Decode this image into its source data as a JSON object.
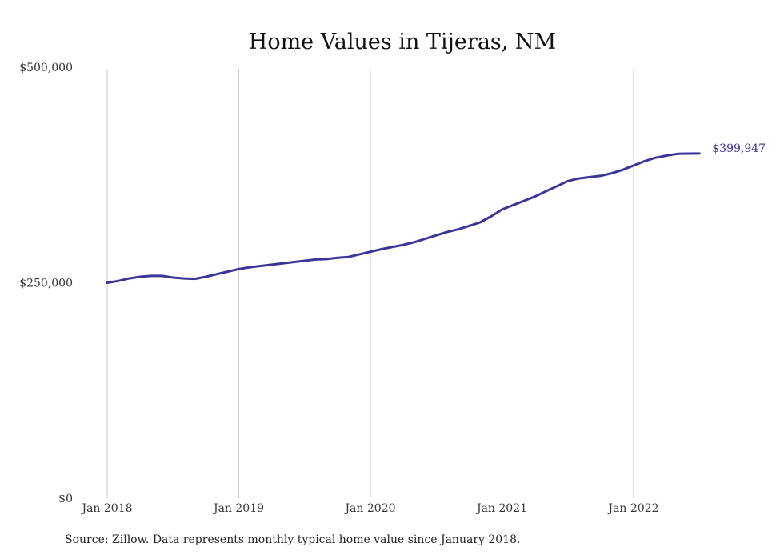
{
  "chart_data": {
    "type": "line",
    "title": "Home Values in Tijeras, NM",
    "xlabel": "",
    "ylabel": "",
    "ylim": [
      0,
      500000
    ],
    "y_ticks": [
      {
        "value": 0,
        "label": "$0"
      },
      {
        "value": 250000,
        "label": "$250,000"
      },
      {
        "value": 500000,
        "label": "$500,000"
      }
    ],
    "x_ticks": [
      {
        "value": "2018-01",
        "label": "Jan 2018"
      },
      {
        "value": "2019-01",
        "label": "Jan 2019"
      },
      {
        "value": "2020-01",
        "label": "Jan 2020"
      },
      {
        "value": "2021-01",
        "label": "Jan 2021"
      },
      {
        "value": "2022-01",
        "label": "Jan 2022"
      }
    ],
    "grid": "vertical",
    "line_color": "#3b3598",
    "end_label": "$399,947",
    "series": [
      {
        "x": [
          "2018-01",
          "2018-02",
          "2018-03",
          "2018-04",
          "2018-05",
          "2018-06",
          "2018-07",
          "2018-08",
          "2018-09",
          "2018-10",
          "2018-11",
          "2018-12",
          "2019-01",
          "2019-02",
          "2019-03",
          "2019-04",
          "2019-05",
          "2019-06",
          "2019-07",
          "2019-08",
          "2019-09",
          "2019-10",
          "2019-11",
          "2019-12",
          "2020-01",
          "2020-02",
          "2020-03",
          "2020-04",
          "2020-05",
          "2020-06",
          "2020-07",
          "2020-08",
          "2020-09",
          "2020-10",
          "2020-11",
          "2020-12",
          "2021-01",
          "2021-02",
          "2021-03",
          "2021-04",
          "2021-05",
          "2021-06",
          "2021-07",
          "2021-08",
          "2021-09",
          "2021-10",
          "2021-11",
          "2021-12",
          "2022-01",
          "2022-02",
          "2022-03",
          "2022-04",
          "2022-05",
          "2022-06",
          "2022-07"
        ],
        "values": [
          250000,
          252000,
          255000,
          257000,
          258000,
          258000,
          256000,
          255000,
          254500,
          257000,
          260000,
          263000,
          266000,
          268000,
          269500,
          271000,
          272500,
          274000,
          275500,
          277000,
          277500,
          279000,
          280000,
          283000,
          286000,
          289000,
          291500,
          294000,
          297000,
          301000,
          305000,
          309000,
          312000,
          316000,
          320000,
          327000,
          335000,
          340000,
          345000,
          350000,
          356000,
          362000,
          368000,
          371000,
          372500,
          374000,
          377000,
          381000,
          386000,
          391000,
          395000,
          397500,
          399500,
          399800,
          399947
        ]
      }
    ]
  },
  "footer": {
    "source": "Source: Zillow. Data represents monthly typical home value since January 2018."
  }
}
